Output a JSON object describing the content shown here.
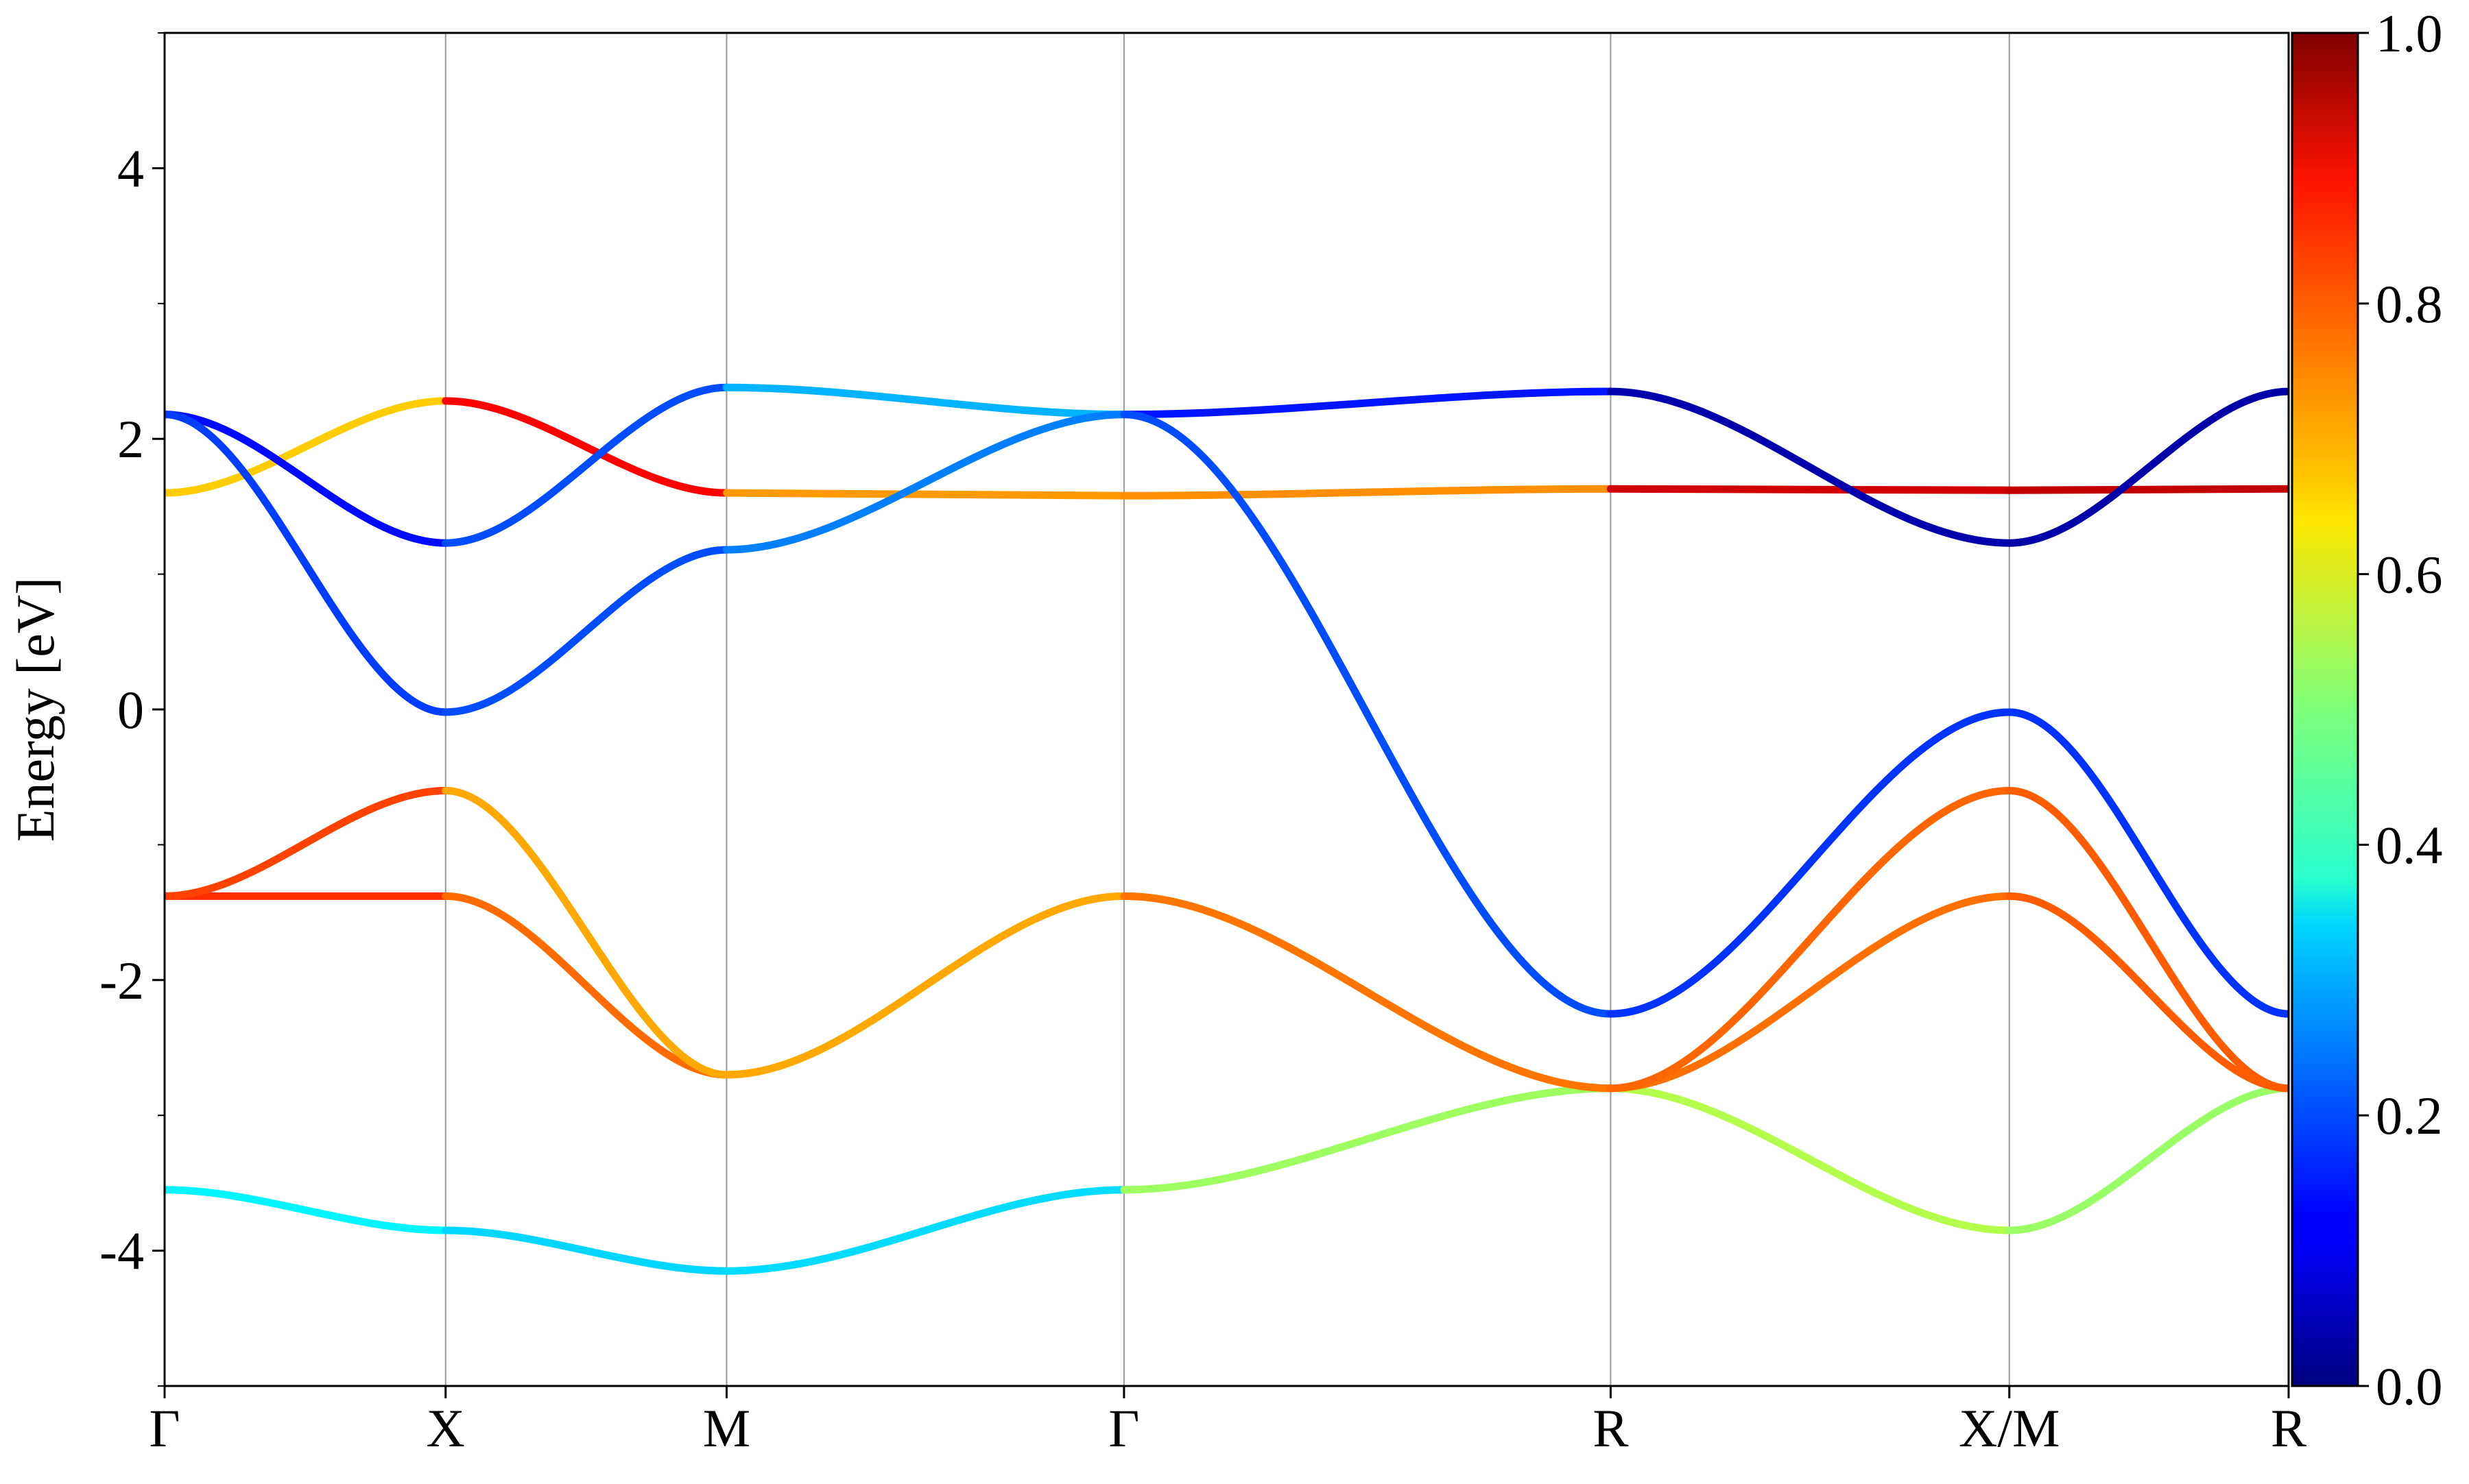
{
  "chart_data": {
    "type": "line",
    "title": "",
    "xlabel": "",
    "ylabel": "Energy [eV]",
    "ylim": [
      -5,
      5
    ],
    "yticks": [
      -4,
      -2,
      0,
      2,
      4
    ],
    "ytick_labels": [
      "-4",
      "-2",
      "0",
      "2",
      "4"
    ],
    "x_path": {
      "labels": [
        "Γ",
        "X",
        "M",
        "Γ",
        "R",
        "X/M",
        "R"
      ],
      "positions": [
        0.0,
        0.1323,
        0.2646,
        0.4517,
        0.6808,
        0.8685,
        1.0
      ]
    },
    "colorbar": {
      "colormap": "jet",
      "range": [
        0.0,
        1.0
      ],
      "ticks": [
        "0.0",
        "0.2",
        "0.4",
        "0.6",
        "0.8",
        "1.0"
      ]
    },
    "series": [
      {
        "x": [
          0,
          0.1323,
          0.2646,
          0.4517,
          0.6808,
          0.8685,
          1.0
        ],
        "y": [
          -3.55,
          -3.85,
          -4.15,
          -3.55,
          -2.8,
          -3.85,
          -2.8
        ],
        "c": [
          0.38,
          0.35,
          0.32,
          0.36,
          0.7,
          0.4,
          0.65
        ]
      },
      {
        "x": [
          0,
          0.1323,
          0.2646,
          0.4517,
          0.6808,
          0.8685,
          1.0
        ],
        "y": [
          -1.38,
          -1.38,
          -2.7,
          -1.38,
          -2.8,
          -1.38,
          -2.8
        ],
        "c": [
          0.78,
          0.88,
          0.66,
          0.72,
          0.68,
          0.85,
          0.72
        ]
      },
      {
        "x": [
          0,
          0.1323,
          0.2646,
          0.4517,
          0.6808,
          0.8685,
          1.0
        ],
        "y": [
          1.6,
          2.28,
          1.6,
          1.58,
          1.63,
          1.62,
          1.63
        ],
        "c": [
          0.5,
          0.85,
          0.9,
          0.55,
          0.92,
          0.92,
          0.95
        ]
      },
      {
        "x": [
          0,
          0.1323,
          0.2646,
          0.4517,
          0.6808,
          0.8685,
          1.0
        ],
        "y": [
          2.18,
          1.23,
          2.38,
          2.18,
          2.35,
          1.23,
          2.35
        ],
        "c": [
          0.22,
          0.05,
          0.35,
          0.25,
          0.04,
          0.05,
          0.03
        ]
      },
      {
        "x": [
          0,
          0.1323,
          0.2646,
          0.4517,
          0.6808,
          0.8685,
          1.0
        ],
        "y": [
          2.18,
          -0.02,
          1.18,
          2.18,
          -2.25,
          -0.02,
          -2.25
        ],
        "c": [
          0.22,
          0.15,
          0.25,
          0.25,
          0.15,
          0.2,
          0.15
        ]
      },
      {
        "x": [
          0,
          0.1323,
          0.2646,
          0.4517,
          0.6808,
          0.8685,
          1.0
        ],
        "y": [
          -1.38,
          -0.6,
          -2.7,
          -1.38,
          -2.8,
          -0.6,
          -2.8
        ],
        "c": [
          0.8,
          0.82,
          0.6,
          0.82,
          0.7,
          0.85,
          0.72
        ]
      }
    ]
  }
}
